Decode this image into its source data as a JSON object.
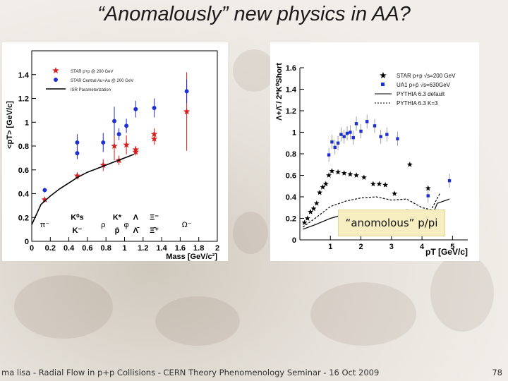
{
  "slide": {
    "title": "“Anomalously” new physics in AA?",
    "footer": "ma lisa - Radial Flow in p+p Collisions - CERN Theory Phenomenology Seminar - 16 Oct 2009",
    "page_number": "78",
    "annotation": "“anomolous” p/pi"
  },
  "chart_data": [
    {
      "type": "scatter",
      "ylabel": "<pT> [GeV/c]",
      "xlabel": "Mass [GeV/c²]",
      "xlim": [
        0,
        2
      ],
      "ylim": [
        0,
        1.6
      ],
      "x_ticks": [
        "0",
        "0.2",
        "0.4",
        "0.6",
        "0.8",
        "1",
        "1.2",
        "1.4",
        "1.6",
        "1.8",
        "2"
      ],
      "y_ticks": [
        "0",
        "0.2",
        "0.4",
        "0.6",
        "0.8",
        "1",
        "1.2",
        "1.4"
      ],
      "legend_position": "top-left",
      "legend": [
        {
          "label": "STAR p+p @ 200 GeV",
          "marker": "star",
          "color": "#d42020"
        },
        {
          "label": "STAR Central Au+Au @ 200 GeV",
          "marker": "circle",
          "color": "#1f2fd0"
        },
        {
          "label": "ISR Parameterization",
          "marker": "line",
          "color": "#000000"
        }
      ],
      "particle_labels": [
        {
          "text": "π⁻",
          "x": 0.14
        },
        {
          "text": "K⁰s / K⁻",
          "x": 0.49
        },
        {
          "text": "ρ",
          "x": 0.77
        },
        {
          "text": "K* / p̄",
          "x": 0.92
        },
        {
          "text": "φ",
          "x": 1.02
        },
        {
          "text": "Λ / Λ̄",
          "x": 1.12
        },
        {
          "text": "Ξ⁻ / Ξ̄⁺",
          "x": 1.32
        },
        {
          "text": "Ω⁻",
          "x": 1.67
        }
      ],
      "series": [
        {
          "name": "STAR p+p @ 200 GeV",
          "marker": "star",
          "color": "#d42020",
          "points": [
            {
              "x": 0.14,
              "y": 0.35,
              "err": 0.02
            },
            {
              "x": 0.49,
              "y": 0.55,
              "err": 0.03
            },
            {
              "x": 0.77,
              "y": 0.64,
              "err": 0.05
            },
            {
              "x": 0.89,
              "y": 0.8,
              "err": 0.12
            },
            {
              "x": 0.94,
              "y": 0.68,
              "err": 0.04
            },
            {
              "x": 1.02,
              "y": 0.81,
              "err": 0.08
            },
            {
              "x": 1.12,
              "y": 0.77,
              "err": 0.03
            },
            {
              "x": 1.12,
              "y": 0.75,
              "err": 0.03
            },
            {
              "x": 1.32,
              "y": 0.9,
              "err": 0.05
            },
            {
              "x": 1.32,
              "y": 0.86,
              "err": 0.05
            },
            {
              "x": 1.67,
              "y": 1.09,
              "err": 0.33
            }
          ]
        },
        {
          "name": "STAR Central Au+Au @ 200 GeV",
          "marker": "circle",
          "color": "#1f2fd0",
          "points": [
            {
              "x": 0.14,
              "y": 0.43,
              "err": 0.02
            },
            {
              "x": 0.49,
              "y": 0.83,
              "err": 0.07
            },
            {
              "x": 0.49,
              "y": 0.74,
              "err": 0.05
            },
            {
              "x": 0.77,
              "y": 0.83,
              "err": 0.08
            },
            {
              "x": 0.89,
              "y": 1.01,
              "err": 0.12
            },
            {
              "x": 0.94,
              "y": 0.9,
              "err": 0.05
            },
            {
              "x": 1.02,
              "y": 0.97,
              "err": 0.06
            },
            {
              "x": 1.12,
              "y": 1.11,
              "err": 0.07
            },
            {
              "x": 1.32,
              "y": 1.12,
              "err": 0.08
            },
            {
              "x": 1.67,
              "y": 1.26,
              "err": 0.1
            }
          ]
        },
        {
          "name": "ISR Parameterization",
          "type": "line",
          "color": "#000000",
          "points": [
            {
              "x": 0.0,
              "y": 0.14
            },
            {
              "x": 0.1,
              "y": 0.31
            },
            {
              "x": 0.2,
              "y": 0.38
            },
            {
              "x": 0.3,
              "y": 0.44
            },
            {
              "x": 0.4,
              "y": 0.49
            },
            {
              "x": 0.5,
              "y": 0.54
            },
            {
              "x": 0.6,
              "y": 0.58
            },
            {
              "x": 0.7,
              "y": 0.61
            },
            {
              "x": 0.8,
              "y": 0.64
            },
            {
              "x": 0.9,
              "y": 0.67
            },
            {
              "x": 1.0,
              "y": 0.7
            },
            {
              "x": 1.1,
              "y": 0.73
            }
          ]
        }
      ]
    },
    {
      "type": "scatter",
      "ylabel": "Λ+Λ̄ / 2*K⁰Short",
      "xlabel": "pT [GeV/c]",
      "xlim": [
        0,
        5.5
      ],
      "ylim": [
        0,
        1.6
      ],
      "x_ticks": [
        "1",
        "2",
        "3",
        "4",
        "5"
      ],
      "y_ticks": [
        "0",
        "0.2",
        "0.4",
        "0.6",
        "0.8",
        "1",
        "1.2",
        "1.4",
        "1.6"
      ],
      "legend_position": "top-right",
      "legend": [
        {
          "label": "STAR p+p √s=200 GeV",
          "marker": "star",
          "color": "#000000"
        },
        {
          "label": "UA1 p+p̄ √s=630GeV",
          "marker": "square",
          "color": "#1f2fd0"
        },
        {
          "label": "PYTHIA 6.3 default",
          "marker": "solid-line",
          "color": "#000000"
        },
        {
          "label": "PYTHIA 6.3 K=3",
          "marker": "dashed-line",
          "color": "#000000"
        }
      ],
      "series": [
        {
          "name": "STAR p+p √s=200 GeV",
          "marker": "star",
          "color": "#000000",
          "points": [
            {
              "x": 0.15,
              "y": 0.16
            },
            {
              "x": 0.25,
              "y": 0.2
            },
            {
              "x": 0.35,
              "y": 0.26
            },
            {
              "x": 0.45,
              "y": 0.29
            },
            {
              "x": 0.55,
              "y": 0.34
            },
            {
              "x": 0.65,
              "y": 0.44
            },
            {
              "x": 0.75,
              "y": 0.49
            },
            {
              "x": 0.85,
              "y": 0.52
            },
            {
              "x": 0.95,
              "y": 0.6
            },
            {
              "x": 1.05,
              "y": 0.64
            },
            {
              "x": 1.25,
              "y": 0.63
            },
            {
              "x": 1.45,
              "y": 0.62
            },
            {
              "x": 1.65,
              "y": 0.61
            },
            {
              "x": 1.85,
              "y": 0.6
            },
            {
              "x": 2.1,
              "y": 0.58
            },
            {
              "x": 2.4,
              "y": 0.52
            },
            {
              "x": 2.6,
              "y": 0.52
            },
            {
              "x": 2.8,
              "y": 0.51
            },
            {
              "x": 3.1,
              "y": 0.43
            },
            {
              "x": 3.6,
              "y": 0.7
            },
            {
              "x": 4.2,
              "y": 0.48
            },
            {
              "x": 4.35,
              "y": 0.24
            }
          ]
        },
        {
          "name": "UA1 p+p̄ √s=630GeV",
          "marker": "square",
          "color": "#1f2fd0",
          "points": [
            {
              "x": 0.95,
              "y": 0.79
            },
            {
              "x": 1.05,
              "y": 0.91
            },
            {
              "x": 1.15,
              "y": 0.86
            },
            {
              "x": 1.25,
              "y": 0.9
            },
            {
              "x": 1.35,
              "y": 0.98
            },
            {
              "x": 1.45,
              "y": 0.96
            },
            {
              "x": 1.55,
              "y": 0.99
            },
            {
              "x": 1.65,
              "y": 1.0
            },
            {
              "x": 1.75,
              "y": 0.95
            },
            {
              "x": 1.85,
              "y": 1.08
            },
            {
              "x": 2.0,
              "y": 1.01
            },
            {
              "x": 2.2,
              "y": 1.1
            },
            {
              "x": 2.45,
              "y": 1.06
            },
            {
              "x": 2.65,
              "y": 0.96
            },
            {
              "x": 2.85,
              "y": 0.98
            },
            {
              "x": 3.2,
              "y": 0.94
            },
            {
              "x": 4.2,
              "y": 0.41
            },
            {
              "x": 4.9,
              "y": 0.55
            }
          ]
        },
        {
          "name": "PYTHIA 6.3 default",
          "type": "line",
          "color": "#000000",
          "points": [
            {
              "x": 0.1,
              "y": 0.1
            },
            {
              "x": 0.5,
              "y": 0.14
            },
            {
              "x": 1.0,
              "y": 0.2
            },
            {
              "x": 1.5,
              "y": 0.24
            },
            {
              "x": 2.0,
              "y": 0.26
            },
            {
              "x": 2.5,
              "y": 0.23
            },
            {
              "x": 3.0,
              "y": 0.26
            },
            {
              "x": 3.5,
              "y": 0.28
            },
            {
              "x": 4.0,
              "y": 0.27
            },
            {
              "x": 4.3,
              "y": 0.2
            },
            {
              "x": 4.5,
              "y": 0.34
            },
            {
              "x": 4.9,
              "y": 0.38
            }
          ]
        },
        {
          "name": "PYTHIA 6.3 K=3",
          "type": "dashed-line",
          "color": "#000000",
          "points": [
            {
              "x": 0.1,
              "y": 0.12
            },
            {
              "x": 0.5,
              "y": 0.2
            },
            {
              "x": 1.0,
              "y": 0.31
            },
            {
              "x": 1.5,
              "y": 0.36
            },
            {
              "x": 2.0,
              "y": 0.39
            },
            {
              "x": 2.5,
              "y": 0.4
            },
            {
              "x": 3.0,
              "y": 0.37
            },
            {
              "x": 3.5,
              "y": 0.38
            },
            {
              "x": 4.0,
              "y": 0.3
            },
            {
              "x": 4.3,
              "y": 0.28
            },
            {
              "x": 4.6,
              "y": 0.44
            }
          ]
        }
      ]
    }
  ]
}
